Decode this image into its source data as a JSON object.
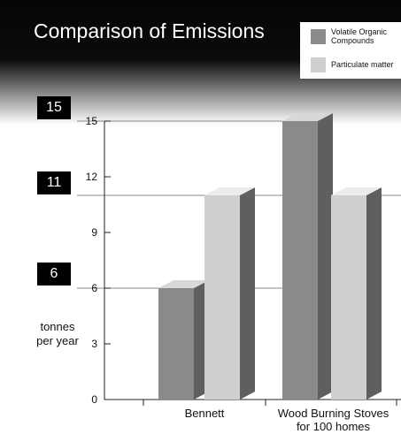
{
  "chart_data": {
    "type": "bar",
    "title": "Comparison of  Emissions",
    "ylabel": [
      "tonnes",
      "per year"
    ],
    "categories": [
      [
        "Bennett"
      ],
      [
        "Wood Burning Stoves",
        "for 100 homes"
      ]
    ],
    "series": [
      {
        "name": "Volatile Organic Compounds",
        "values": [
          6,
          15
        ],
        "color": "#8a8a8a",
        "side_color": "#5f5f5f",
        "top_color": "#d8d8d8"
      },
      {
        "name": "Particulate matter",
        "values": [
          11,
          11
        ],
        "color": "#cfcfcf",
        "side_color": "#5f5f5f",
        "top_color": "#ececec"
      }
    ],
    "ylim": [
      0,
      15
    ],
    "yticks": [
      "0",
      "3",
      "6",
      "9",
      "12",
      "15"
    ],
    "highlight_badges": [
      "15",
      "11",
      "6"
    ],
    "grid": false,
    "legend_position": "top-right"
  }
}
